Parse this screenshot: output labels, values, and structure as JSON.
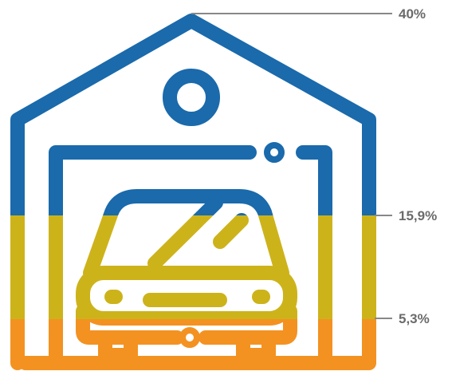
{
  "chart_data": {
    "type": "pictogram-stacked",
    "title": "",
    "unit": "%",
    "segments": [
      {
        "label": "40%",
        "value": 40,
        "color": "#1a6aac"
      },
      {
        "label": "15,9%",
        "value": 15.9,
        "color": "#cdb31a"
      },
      {
        "label": "5,3%",
        "value": 5.3,
        "color": "#f39221"
      }
    ]
  }
}
